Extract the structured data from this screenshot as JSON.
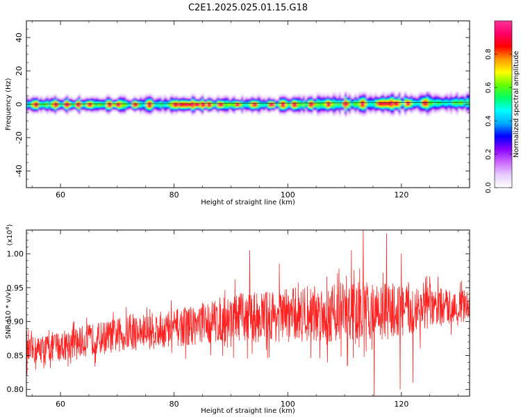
{
  "figure_title": "C2E1.2025.025.01.15.G18",
  "chart_data": [
    {
      "type": "heatmap",
      "title": "C2E1.2025.025.01.15.G18",
      "xlabel": "Height of straight line (km)",
      "ylabel": "Frequency (Hz)",
      "xlim": [
        54,
        132
      ],
      "ylim": [
        -50,
        50
      ],
      "xticks": [
        60,
        80,
        100,
        120
      ],
      "xtick_labels": [
        "60",
        "80",
        "100",
        "120"
      ],
      "yticks": [
        40,
        20,
        0,
        -20,
        -40
      ],
      "ytick_labels": [
        "40",
        "20",
        "0",
        "-20",
        "-40"
      ],
      "band": {
        "description_values": "energy concentrated near 0 Hz along the full height range",
        "center_freq_start_hz": 0.0,
        "center_freq_end_hz": 1.2,
        "halfwidth_hz": 3.5
      },
      "hotspots_km": [
        55.5,
        59,
        61,
        63,
        65,
        68.5,
        70,
        73,
        75.5,
        80,
        81,
        82,
        83,
        84,
        85,
        86,
        88,
        91,
        94,
        97,
        99,
        101,
        104,
        107,
        110,
        113,
        116,
        117,
        118,
        119,
        121,
        124
      ],
      "colorbar": {
        "label": "Normalized spectral amplitude",
        "range": [
          0.0,
          1.0
        ],
        "ticks": [
          0.0,
          0.2,
          0.4,
          0.6,
          0.8
        ],
        "tick_labels": [
          "0.0",
          "0.2",
          "0.4",
          "0.6",
          "0.8"
        ],
        "colormap": [
          "#ffffff",
          "#e6ccff",
          "#cc66ff",
          "#8800ff",
          "#0000ff",
          "#00aaff",
          "#00ffff",
          "#00ff66",
          "#66ff00",
          "#ffff00",
          "#ff9900",
          "#ff0000",
          "#ff0066",
          "#ff3399"
        ]
      }
    },
    {
      "type": "line",
      "xlabel": "Height of straight line (km)",
      "ylabel": "SNR (10 * v/v)",
      "y_scale_note": "(x10",
      "y_scale_exp": "4",
      "xlim": [
        54,
        132
      ],
      "ylim": [
        0.79,
        1.035
      ],
      "xticks": [
        60,
        80,
        100,
        120
      ],
      "xtick_labels": [
        "60",
        "80",
        "100",
        "120"
      ],
      "yticks": [
        0.8,
        0.85,
        0.9,
        0.95,
        1.0
      ],
      "ytick_labels": [
        "0.80",
        "0.85",
        "0.90",
        "0.95",
        "1.00"
      ],
      "series": [
        {
          "color": "#ff2020",
          "trend_x": [
            54,
            60,
            70,
            80,
            90,
            100,
            110,
            120,
            132
          ],
          "trend_y": [
            0.855,
            0.865,
            0.88,
            0.89,
            0.905,
            0.91,
            0.915,
            0.915,
            0.925
          ],
          "noise_amplitude": [
            0.02,
            0.022,
            0.025,
            0.028,
            0.035,
            0.04,
            0.045,
            0.04,
            0.02
          ],
          "spikes": [
            {
              "x": 113.3,
              "y": 1.035
            },
            {
              "x": 115.2,
              "y": 0.79
            },
            {
              "x": 117.4,
              "y": 1.03
            },
            {
              "x": 111.2,
              "y": 1.005
            },
            {
              "x": 120.0,
              "y": 1.0
            },
            {
              "x": 93.3,
              "y": 1.005
            },
            {
              "x": 110.5,
              "y": 0.835
            },
            {
              "x": 107.0,
              "y": 0.84
            },
            {
              "x": 119.8,
              "y": 0.8
            },
            {
              "x": 122.0,
              "y": 0.81
            },
            {
              "x": 98.5,
              "y": 0.985
            }
          ]
        }
      ]
    }
  ]
}
